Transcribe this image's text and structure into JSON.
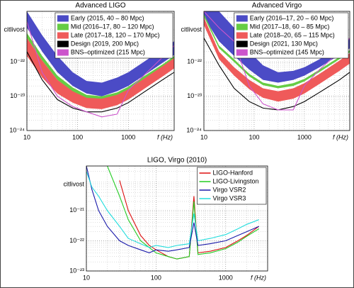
{
  "chart_data": [
    {
      "type": "area",
      "title": "Advanced LIGO",
      "y_label": "citlivost",
      "x_label": "f (Hz)",
      "log_x": true,
      "log_y": true,
      "grid": true,
      "minor_grid": true,
      "legend": "upper right",
      "xlim": [
        10,
        8000
      ],
      "ylim": [
        1e-24,
        3e-21
      ],
      "xticks": [
        10,
        100,
        1000
      ],
      "yticks": [
        {
          "value": 1e-22,
          "label": "10⁻²²"
        },
        {
          "value": 1e-23,
          "label": "10⁻²³"
        },
        {
          "value": 1e-24,
          "label": "10⁻²⁴"
        }
      ],
      "x": [
        10,
        20,
        40,
        80,
        150,
        300,
        600,
        1000,
        2000,
        5000,
        8000
      ],
      "series": [
        {
          "name": "Early (2015, 40 – 80 Mpc)",
          "color": "#4b4bc6",
          "upper": [
            3e-21,
            6e-22,
            1.5e-22,
            5e-23,
            2.8e-23,
            2.5e-23,
            3.5e-23,
            5e-23,
            1e-22,
            2.5e-22,
            4e-22
          ],
          "lower": [
            1e-21,
            2e-22,
            5e-23,
            2e-23,
            1.2e-23,
            1e-23,
            1.4e-23,
            2e-23,
            4e-23,
            1e-22,
            1.6e-22
          ]
        },
        {
          "name": "Mid (2016–17, 80 – 120 Mpc)",
          "color": "#66cc44",
          "upper": [
            7e-22,
            1.5e-22,
            4e-23,
            1.8e-23,
            1.1e-23,
            1e-23,
            1.3e-23,
            1.9e-23,
            3.8e-23,
            9e-23,
            1.5e-22
          ],
          "lower": [
            5e-22,
            1.1e-22,
            3e-23,
            1.35e-23,
            8.2e-24,
            7.5e-24,
            9.8e-24,
            1.4e-23,
            2.8e-23,
            6.8e-23,
            1.1e-22
          ]
        },
        {
          "name": "Late (2017–18, 120 – 170 Mpc)",
          "color": "#ef5a5a",
          "upper": [
            5e-22,
            1.1e-22,
            3e-23,
            1.4e-23,
            9e-24,
            8.5e-24,
            1.1e-23,
            1.6e-23,
            3.2e-23,
            8e-23,
            1.3e-22
          ],
          "lower": [
            1.5e-22,
            3.5e-23,
            1.2e-23,
            6.5e-24,
            4.5e-24,
            4.2e-24,
            5.5e-24,
            8e-24,
            1.6e-23,
            4e-23,
            6.5e-23
          ]
        },
        {
          "name": "Design (2019, 200 Mpc)",
          "color": "#000000",
          "values": [
            2e-22,
            3e-23,
            8e-24,
            4.5e-24,
            3.5e-24,
            3.5e-24,
            4.5e-24,
            6.5e-24,
            1.3e-23,
            3.2e-23,
            5e-23
          ]
        },
        {
          "name": "BNS–optimized (215 Mpc)",
          "color": "#cc55cc",
          "values": [
            1.5e-21,
            5e-23,
            1e-23,
            5e-24,
            3.5e-24,
            2.5e-24,
            3e-24,
            1.5e-23,
            4e-23,
            1.5e-22,
            3e-22
          ]
        }
      ]
    },
    {
      "type": "area",
      "title": "Advanced Virgo",
      "y_label": "citlivost",
      "x_label": "f (Hz)",
      "log_x": true,
      "log_y": true,
      "grid": true,
      "minor_grid": true,
      "legend": "upper right",
      "xlim": [
        10,
        8000
      ],
      "ylim": [
        1e-24,
        3e-21
      ],
      "xticks": [
        10,
        100,
        1000
      ],
      "yticks": [
        {
          "value": 1e-22,
          "label": "10⁻²²"
        },
        {
          "value": 1e-23,
          "label": "10⁻²³"
        },
        {
          "value": 1e-24,
          "label": "10⁻²⁴"
        }
      ],
      "x": [
        10,
        20,
        40,
        80,
        150,
        300,
        600,
        1000,
        2000,
        5000,
        8000
      ],
      "series": [
        {
          "name": "Early (2016–17, 20 – 60 Mpc)",
          "color": "#4b4bc6",
          "upper": [
            3e-21,
            3e-21,
            1e-21,
            2e-22,
            8e-23,
            5e-23,
            5.5e-23,
            7e-23,
            1.2e-22,
            3e-22,
            5e-22
          ],
          "lower": [
            2e-21,
            4e-22,
            1.5e-22,
            6e-23,
            3e-23,
            2.5e-23,
            3e-23,
            4e-23,
            7e-23,
            1.6e-22,
            2.5e-22
          ]
        },
        {
          "name": "Mid (2017–18, 60 – 85 Mpc)",
          "color": "#66cc44",
          "upper": [
            2.5e-21,
            3e-22,
            1.2e-22,
            4.5e-23,
            2.5e-23,
            2e-23,
            2.4e-23,
            3.2e-23,
            6e-23,
            1.4e-22,
            2.2e-22
          ],
          "lower": [
            2.1e-21,
            2.5e-22,
            1e-22,
            3.8e-23,
            2.1e-23,
            1.7e-23,
            2e-23,
            2.7e-23,
            5.1e-23,
            1.2e-22,
            1.9e-22
          ]
        },
        {
          "name": "Late (2018–20, 65 – 115 Mpc)",
          "color": "#ef5a5a",
          "upper": [
            2e-21,
            2e-22,
            7e-23,
            3e-23,
            1.7e-23,
            1.4e-23,
            1.7e-23,
            2.4e-23,
            4.5e-23,
            1.1e-22,
            1.8e-22
          ],
          "lower": [
            1.2e-21,
            1.2e-22,
            4e-23,
            1.6e-23,
            9e-24,
            7e-24,
            8.5e-24,
            1.2e-23,
            2.3e-23,
            5.5e-23,
            9e-23
          ]
        },
        {
          "name": "Design (2021, 130 Mpc)",
          "color": "#000000",
          "values": [
            5e-22,
            8e-23,
            1.7e-23,
            7e-24,
            4.5e-24,
            4e-24,
            5e-24,
            7e-24,
            1.3e-23,
            3e-23,
            5e-23
          ]
        },
        {
          "name": "BNS–optimized (145 Mpc)",
          "color": "#cc55cc",
          "values": [
            3e-21,
            1e-21,
            4e-22,
            2e-23,
            6e-24,
            4e-24,
            4e-24,
            2e-23,
            6e-23,
            2e-22,
            5e-22
          ]
        }
      ]
    },
    {
      "type": "line",
      "title": "LIGO, Virgo (2010)",
      "y_label": "citlivost",
      "x_label": "f (Hz)",
      "log_x": true,
      "log_y": true,
      "grid": true,
      "minor_grid": true,
      "legend": "upper right",
      "xlim": [
        10,
        4000
      ],
      "ylim": [
        1e-23,
        3e-20
      ],
      "xticks": [
        10,
        100,
        1000
      ],
      "yticks": [
        {
          "value": 1e-21,
          "label": "10⁻²¹"
        },
        {
          "value": 1e-22,
          "label": "10⁻²²"
        },
        {
          "value": 1e-23,
          "label": "10⁻²³"
        }
      ],
      "x": [
        10,
        12,
        15,
        20,
        30,
        40,
        60,
        80,
        100,
        150,
        200,
        300,
        350,
        400,
        600,
        1000,
        1500,
        2000,
        3000
      ],
      "series": [
        {
          "name": "LIGO-Hanford",
          "color": "#dd1111",
          "values": [
            null,
            null,
            null,
            null,
            1e-20,
            1e-21,
            1.5e-22,
            7e-23,
            5e-23,
            3e-23,
            2.5e-23,
            3e-23,
            3e-21,
            4e-23,
            4.5e-23,
            6e-23,
            1e-22,
            1.5e-22,
            3e-22
          ]
        },
        {
          "name": "LIGO-Livingston",
          "color": "#22cc22",
          "values": [
            null,
            null,
            null,
            3e-20,
            3e-21,
            5e-22,
            1e-22,
            6e-23,
            4e-23,
            3e-23,
            2.5e-23,
            3e-23,
            2e-21,
            3.5e-23,
            4e-23,
            5.5e-23,
            9e-23,
            1.4e-22,
            2.5e-22
          ]
        },
        {
          "name": "Virgo VSR2",
          "color": "#1a1aaa",
          "values": [
            3e-20,
            5e-21,
            1e-21,
            3e-22,
            1e-22,
            7e-23,
            5e-23,
            4e-23,
            5e-23,
            4.5e-23,
            5e-23,
            6e-23,
            4e-22,
            7e-23,
            8e-23,
            1e-22,
            1.5e-22,
            2e-22,
            3e-22
          ]
        },
        {
          "name": "Virgo VSR3",
          "color": "#22dddd",
          "values": [
            2e-20,
            6e-21,
            3e-21,
            1e-21,
            3e-22,
            1.2e-22,
            8e-23,
            6e-23,
            7e-23,
            6e-23,
            7e-23,
            8e-23,
            8e-22,
            1e-22,
            1.2e-22,
            1.6e-22,
            2.5e-22,
            3.5e-22,
            5e-22
          ]
        }
      ]
    }
  ]
}
